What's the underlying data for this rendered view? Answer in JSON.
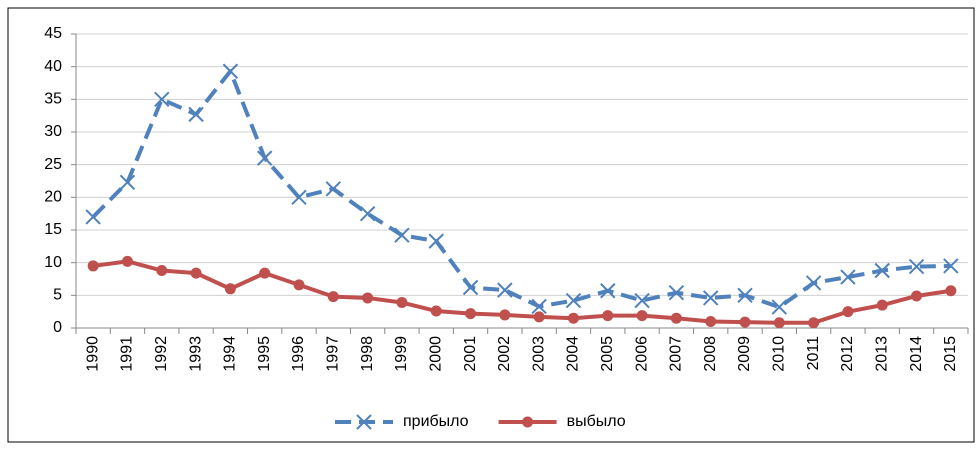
{
  "chart_data": {
    "type": "line",
    "categories": [
      "1990",
      "1991",
      "1992",
      "1993",
      "1994",
      "1995",
      "1996",
      "1997",
      "1998",
      "1999",
      "2000",
      "2001",
      "2002",
      "2003",
      "2004",
      "2005",
      "2006",
      "2007",
      "2008",
      "2009",
      "2010",
      "2011",
      "2012",
      "2013",
      "2014",
      "2015"
    ],
    "series": [
      {
        "name": "прибыло",
        "color": "#4f81bd",
        "dash": true,
        "marker": "x",
        "values": [
          17,
          22.3,
          35,
          32.7,
          39.3,
          26,
          20,
          21.3,
          17.5,
          14.2,
          13.3,
          6.2,
          5.8,
          3.3,
          4.2,
          5.7,
          4.2,
          5.4,
          4.6,
          5,
          3.2,
          6.9,
          7.8,
          8.8,
          9.4,
          9.5
        ]
      },
      {
        "name": "выбыло",
        "color": "#c0504d",
        "dash": false,
        "marker": "circle",
        "values": [
          9.5,
          10.2,
          8.8,
          8.4,
          6,
          8.4,
          6.6,
          4.8,
          4.6,
          3.9,
          2.6,
          2.2,
          2,
          1.7,
          1.5,
          1.9,
          1.9,
          1.5,
          1,
          0.9,
          0.8,
          0.8,
          2.5,
          3.5,
          4.9,
          5.7
        ]
      }
    ],
    "ylim": [
      0,
      45
    ],
    "yticks": [
      0,
      5,
      10,
      15,
      20,
      25,
      30,
      35,
      40,
      45
    ],
    "grid": true,
    "legend": "bottom"
  }
}
